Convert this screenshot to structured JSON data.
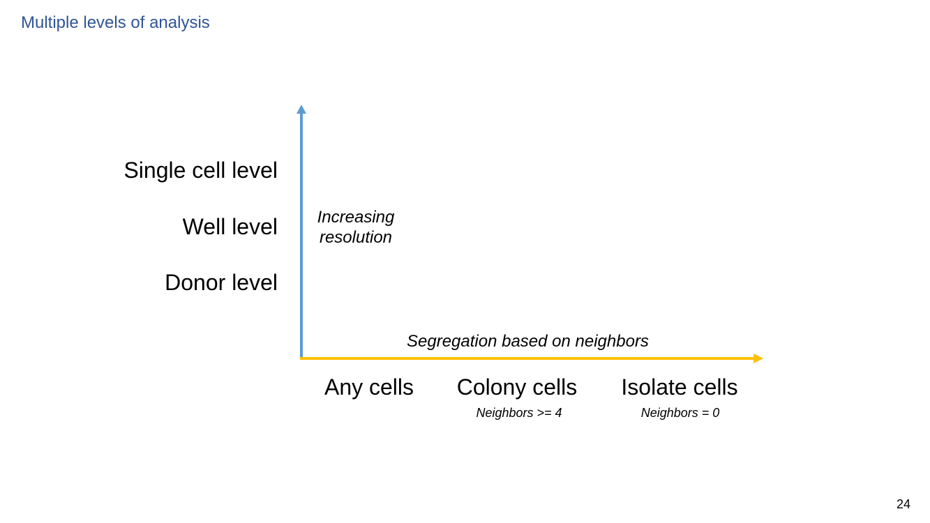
{
  "slide": {
    "title": "Multiple levels of analysis",
    "page_number": "24"
  },
  "y_axis": {
    "caption_line1": "Increasing",
    "caption_line2": "resolution",
    "color": "#5b9bd5",
    "levels": [
      "Single cell level",
      "Well level",
      "Donor level"
    ]
  },
  "x_axis": {
    "caption": "Segregation based on neighbors",
    "color": "#ffc000",
    "categories": [
      {
        "label": "Any cells",
        "note": ""
      },
      {
        "label": "Colony cells",
        "note": "Neighbors >= 4"
      },
      {
        "label": "Isolate cells",
        "note": "Neighbors = 0"
      }
    ]
  }
}
